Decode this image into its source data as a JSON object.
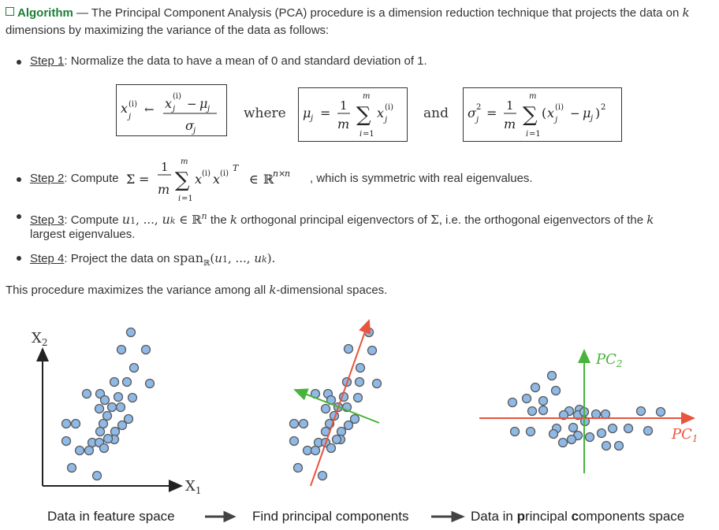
{
  "intro": {
    "label": "Algorithm",
    "dash": " — ",
    "text": "The Principal Component Analysis (PCA) procedure is a dimension reduction technique that projects the data on k dimensions by maximizing the variance of the data as follows:"
  },
  "steps": [
    {
      "label": "Step 1",
      "text": ": Normalize the data to have a mean of 0 and standard deviation of 1."
    },
    {
      "label": "Step 2",
      "text_prefix": ": Compute",
      "text_suffix": ", which is symmetric with real eigenvalues."
    },
    {
      "label": "Step 3",
      "text_prefix": ": Compute",
      "text_mid": "the",
      "text_mid2": "orthogonal principal eigenvectors of",
      "text_mid3": ", i.e. the orthogonal eigenvectors of the",
      "text_line2": "largest eigenvalues."
    },
    {
      "label": "Step 4",
      "text_prefix": ": Project the data on"
    }
  ],
  "equations": {
    "where": "where",
    "and": "and"
  },
  "closing": {
    "prefix": "This procedure maximizes the variance among all",
    "suffix": "-dimensional spaces."
  },
  "figure": {
    "axis_x": "X",
    "axis_x_sub": "1",
    "axis_y": "X",
    "axis_y_sub": "2",
    "pc1": "PC",
    "pc1_sub": "1",
    "pc2": "PC",
    "pc2_sub": "2",
    "captions": [
      "Data in feature space",
      "Find principal components"
    ],
    "caption3": {
      "a": "Data in ",
      "b": "p",
      "c": "rincipal ",
      "d": "c",
      "e": "omponents space"
    },
    "colors": {
      "point_fill": "#8fb9e6",
      "point_stroke": "#5a5a5a",
      "pc1": "#e8543e",
      "pc2": "#47b33a"
    }
  }
}
